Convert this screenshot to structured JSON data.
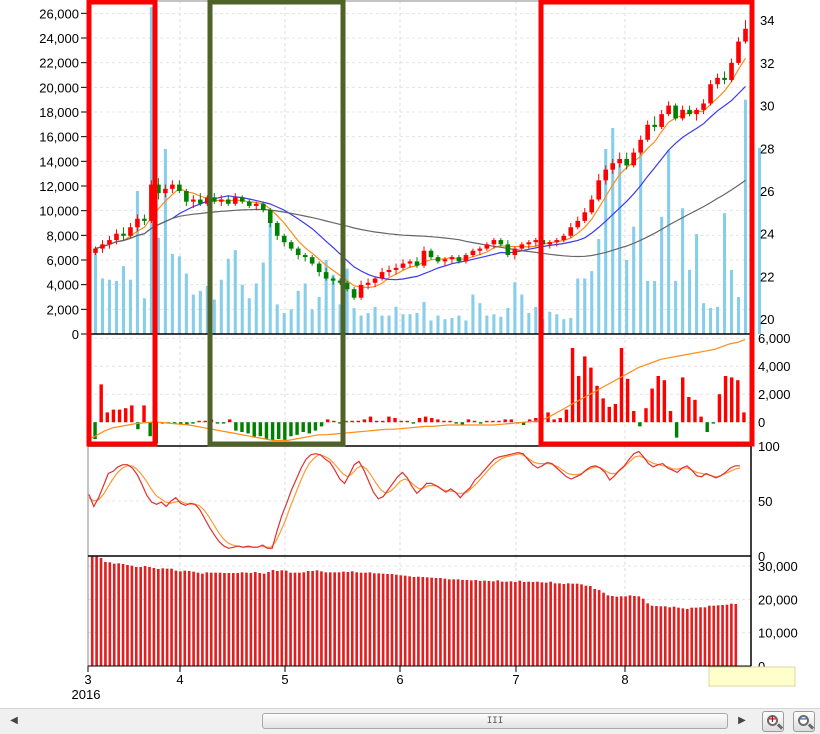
{
  "chart_data": [
    {
      "type": "candlestick",
      "panel": "price",
      "left_axis": {
        "label": "volume",
        "range": [
          0,
          27000
        ],
        "ticks": [
          "26,000",
          "24,000",
          "22,000",
          "20,000",
          "18,000",
          "16,000",
          "14,000",
          "12,000",
          "10,000",
          "8,000",
          "6,000",
          "4,000",
          "2,000",
          "0"
        ]
      },
      "right_axis": {
        "label": "price",
        "range": [
          19.3,
          34.9
        ],
        "ticks": [
          "34",
          "32",
          "30",
          "28",
          "26",
          "24",
          "22",
          "20"
        ]
      },
      "ohlc": [
        [
          23.1,
          23.4,
          23.0,
          23.3
        ],
        [
          23.3,
          23.7,
          23.1,
          23.5
        ],
        [
          23.5,
          23.9,
          23.3,
          23.7
        ],
        [
          23.7,
          24.2,
          23.5,
          24.0
        ],
        [
          24.0,
          24.3,
          23.7,
          23.9
        ],
        [
          23.9,
          24.5,
          23.8,
          24.3
        ],
        [
          24.3,
          24.9,
          24.1,
          24.7
        ],
        [
          24.7,
          24.9,
          24.4,
          24.6
        ],
        [
          24.6,
          26.5,
          24.5,
          26.3
        ],
        [
          26.3,
          26.6,
          25.6,
          25.9
        ],
        [
          25.9,
          26.3,
          25.7,
          26.1
        ],
        [
          26.1,
          26.5,
          25.9,
          26.3
        ],
        [
          26.3,
          26.5,
          25.9,
          26.0
        ],
        [
          26.0,
          26.1,
          25.3,
          25.5
        ],
        [
          25.5,
          25.8,
          25.2,
          25.6
        ],
        [
          25.6,
          25.9,
          25.3,
          25.4
        ],
        [
          25.4,
          25.8,
          25.3,
          25.7
        ],
        [
          25.7,
          25.9,
          25.4,
          25.5
        ],
        [
          25.5,
          25.8,
          25.3,
          25.6
        ],
        [
          25.6,
          25.8,
          25.3,
          25.4
        ],
        [
          25.4,
          25.9,
          25.3,
          25.7
        ],
        [
          25.7,
          25.8,
          25.4,
          25.5
        ],
        [
          25.5,
          25.6,
          25.2,
          25.3
        ],
        [
          25.3,
          25.5,
          25.1,
          25.4
        ],
        [
          25.4,
          25.5,
          25.0,
          25.1
        ],
        [
          25.1,
          25.2,
          24.3,
          24.5
        ],
        [
          24.5,
          24.6,
          23.7,
          23.9
        ],
        [
          23.9,
          24.0,
          23.4,
          23.6
        ],
        [
          23.6,
          23.7,
          23.2,
          23.3
        ],
        [
          23.3,
          23.4,
          22.8,
          23.0
        ],
        [
          23.0,
          23.1,
          22.7,
          22.9
        ],
        [
          22.9,
          23.0,
          22.5,
          22.6
        ],
        [
          22.6,
          22.7,
          22.0,
          22.2
        ],
        [
          22.2,
          22.4,
          21.8,
          21.9
        ],
        [
          21.9,
          22.0,
          21.6,
          21.8
        ],
        [
          21.8,
          21.9,
          21.6,
          21.7
        ],
        [
          21.7,
          21.8,
          21.3,
          21.4
        ],
        [
          21.4,
          21.5,
          20.9,
          21.0
        ],
        [
          21.0,
          21.8,
          20.9,
          21.6
        ],
        [
          21.6,
          21.9,
          21.4,
          21.7
        ],
        [
          21.7,
          22.0,
          21.5,
          21.9
        ],
        [
          21.9,
          22.4,
          21.8,
          22.2
        ],
        [
          22.2,
          22.5,
          22.0,
          22.3
        ],
        [
          22.3,
          22.6,
          22.1,
          22.4
        ],
        [
          22.4,
          22.8,
          22.3,
          22.6
        ],
        [
          22.6,
          22.8,
          22.4,
          22.7
        ],
        [
          22.7,
          22.9,
          22.4,
          22.5
        ],
        [
          22.5,
          23.4,
          22.4,
          23.2
        ],
        [
          23.2,
          23.3,
          22.8,
          22.9
        ],
        [
          22.9,
          23.0,
          22.6,
          22.7
        ],
        [
          22.7,
          22.9,
          22.5,
          22.8
        ],
        [
          22.8,
          23.0,
          22.6,
          22.9
        ],
        [
          22.9,
          23.0,
          22.6,
          22.7
        ],
        [
          22.7,
          23.1,
          22.6,
          23.0
        ],
        [
          23.0,
          23.3,
          22.9,
          23.2
        ],
        [
          23.2,
          23.4,
          23.0,
          23.3
        ],
        [
          23.3,
          23.6,
          23.2,
          23.5
        ],
        [
          23.5,
          23.8,
          23.3,
          23.7
        ],
        [
          23.7,
          23.8,
          23.4,
          23.5
        ],
        [
          23.5,
          23.7,
          22.9,
          23.0
        ],
        [
          23.0,
          23.4,
          22.8,
          23.3
        ],
        [
          23.3,
          23.6,
          23.2,
          23.5
        ],
        [
          23.5,
          23.7,
          23.3,
          23.6
        ],
        [
          23.6,
          23.8,
          23.4,
          23.7
        ],
        [
          23.7,
          23.8,
          23.4,
          23.5
        ],
        [
          23.5,
          23.7,
          23.3,
          23.6
        ],
        [
          23.6,
          23.8,
          23.4,
          23.7
        ],
        [
          23.7,
          24.0,
          23.6,
          23.9
        ],
        [
          23.9,
          24.5,
          23.8,
          24.3
        ],
        [
          24.3,
          24.8,
          24.2,
          24.6
        ],
        [
          24.6,
          25.2,
          24.5,
          25.0
        ],
        [
          25.0,
          25.8,
          24.9,
          25.6
        ],
        [
          25.6,
          26.8,
          25.5,
          26.5
        ],
        [
          26.5,
          27.2,
          26.3,
          27.0
        ],
        [
          27.0,
          27.5,
          26.8,
          27.3
        ],
        [
          27.3,
          27.8,
          27.1,
          27.5
        ],
        [
          27.5,
          27.8,
          27.0,
          27.2
        ],
        [
          27.2,
          28.0,
          27.1,
          27.8
        ],
        [
          27.8,
          28.6,
          27.7,
          28.4
        ],
        [
          28.4,
          29.3,
          28.3,
          29.1
        ],
        [
          29.1,
          29.5,
          28.8,
          29.0
        ],
        [
          29.0,
          29.8,
          28.9,
          29.6
        ],
        [
          29.6,
          30.2,
          29.5,
          30.0
        ],
        [
          30.0,
          30.1,
          29.3,
          29.4
        ],
        [
          29.4,
          30.0,
          29.3,
          29.8
        ],
        [
          29.8,
          30.0,
          29.5,
          29.6
        ],
        [
          29.6,
          29.9,
          29.3,
          29.8
        ],
        [
          29.8,
          30.3,
          29.6,
          30.1
        ],
        [
          30.1,
          31.2,
          30.0,
          31.0
        ],
        [
          31.0,
          31.5,
          30.8,
          31.3
        ],
        [
          31.3,
          31.6,
          31.0,
          31.2
        ],
        [
          31.2,
          32.2,
          31.1,
          32.0
        ],
        [
          32.0,
          33.2,
          31.9,
          33.0
        ],
        [
          33.0,
          34.0,
          32.9,
          33.6
        ]
      ],
      "volume": [
        7000,
        4500,
        4400,
        4300,
        5500,
        4400,
        11600,
        2900,
        26500,
        7800,
        15000,
        6500,
        6300,
        4900,
        3200,
        3500,
        3900,
        2800,
        4400,
        6100,
        6800,
        4000,
        2900,
        4100,
        5800,
        10000,
        2400,
        1700,
        2000,
        3500,
        4100,
        2000,
        3000,
        6000,
        4800,
        2400,
        5300,
        2100,
        1500,
        1700,
        2200,
        1500,
        1500,
        2200,
        1600,
        1600,
        1700,
        2600,
        1100,
        1500,
        1200,
        1300,
        1500,
        1100,
        3200,
        2500,
        1500,
        1600,
        1400,
        2100,
        4200,
        3200,
        1700,
        2200,
        1200,
        1800,
        1600,
        1200,
        1300,
        4500,
        4500,
        5100,
        7700,
        15000,
        16700,
        13900,
        6000,
        8700,
        15000,
        4300,
        4300,
        9500,
        14900,
        4300,
        10200,
        5200,
        8100,
        2500,
        2100,
        2200,
        9800,
        5200,
        3000,
        19000,
        14000,
        15100
      ]
    },
    {
      "type": "bar+line",
      "panel": "indicator-2",
      "right_axis": {
        "range": [
          -1700,
          6300
        ],
        "ticks": [
          "6,000",
          "4,000",
          "2,000",
          "0"
        ]
      },
      "bars": [
        -1200,
        2700,
        700,
        900,
        900,
        1000,
        1200,
        -500,
        1200,
        -1000,
        -1500,
        -100,
        -100,
        -100,
        -150,
        -200,
        -100,
        100,
        100,
        200,
        -100,
        -100,
        200,
        -600,
        -700,
        -800,
        -1100,
        -1000,
        -1200,
        -1300,
        -1200,
        -1300,
        -1000,
        -900,
        -700,
        -800,
        -600,
        -300,
        200,
        100,
        -100,
        100,
        100,
        100,
        200,
        400,
        100,
        100,
        400,
        300,
        100,
        100,
        -100,
        300,
        400,
        300,
        200,
        100,
        100,
        -100,
        -200,
        200,
        100,
        -100,
        100,
        100,
        100,
        200,
        200,
        -100,
        -200,
        200,
        300,
        500,
        700,
        200,
        300,
        900,
        5300,
        3300,
        4700,
        3900,
        2600,
        1700,
        1100,
        1300,
        5300,
        3100,
        800,
        -300,
        1000,
        2400,
        3300,
        3000,
        800,
        -1100,
        3200,
        1800,
        1600,
        400,
        -700,
        -100,
        2000,
        3300,
        3200,
        3000,
        700
      ],
      "line": [
        -1200,
        -900,
        -600,
        -400,
        -300,
        -200,
        -100,
        -50,
        0,
        0,
        -50,
        -100,
        -150,
        -200,
        -300,
        -400,
        -500,
        -600,
        -700,
        -800,
        -900,
        -1000,
        -1100,
        -1200,
        -1300,
        -1300,
        -1300,
        -1200,
        -1100,
        -1000,
        -900,
        -900,
        -850,
        -800,
        -750,
        -700,
        -650,
        -600,
        -550,
        -500,
        -500,
        -450,
        -400,
        -350,
        -300,
        -300,
        -250,
        -200,
        -200,
        -200,
        -200,
        -200,
        -200,
        -200,
        -150,
        -100,
        -50,
        0,
        50,
        100,
        300,
        600,
        900,
        1200,
        1500,
        1800,
        2100,
        2400,
        2700,
        3000,
        3300,
        3600,
        3900,
        4100,
        4300,
        4500,
        4600,
        4700,
        4800,
        4900,
        5000,
        5100,
        5200,
        5400,
        5600,
        5700,
        5900
      ]
    },
    {
      "type": "line",
      "panel": "oscillator",
      "right_axis": {
        "range": [
          0,
          100
        ],
        "ticks": [
          "100",
          "50",
          "0"
        ]
      },
      "fast": [
        56,
        45,
        53,
        64,
        75,
        77,
        81,
        83,
        83,
        80,
        74,
        65,
        55,
        49,
        47,
        49,
        45,
        50,
        53,
        48,
        46,
        48,
        47,
        42,
        34,
        26,
        19,
        13,
        9,
        7,
        8,
        9,
        8,
        9,
        8,
        8,
        10,
        7,
        7,
        23,
        37,
        48,
        60,
        70,
        80,
        88,
        92,
        93,
        92,
        88,
        85,
        78,
        70,
        66,
        74,
        83,
        86,
        78,
        68,
        58,
        52,
        54,
        60,
        66,
        72,
        76,
        71,
        63,
        57,
        61,
        66,
        66,
        64,
        61,
        58,
        61,
        58,
        53,
        58,
        62,
        69,
        73,
        78,
        83,
        88,
        90,
        91,
        92,
        93,
        94,
        93,
        88,
        83,
        80,
        82,
        85,
        84,
        80,
        76,
        72,
        70,
        72,
        74,
        78,
        81,
        82,
        80,
        76,
        69,
        73,
        78,
        82,
        88,
        93,
        95,
        90,
        84,
        81,
        83,
        84,
        80,
        78,
        76,
        80,
        82,
        78,
        73,
        72,
        75,
        73,
        71,
        73,
        76,
        80,
        82,
        82
      ],
      "slow": [
        53,
        50,
        51,
        56,
        63,
        70,
        76,
        80,
        82,
        82,
        79,
        74,
        68,
        61,
        55,
        52,
        49,
        48,
        49,
        50,
        48,
        47,
        47,
        46,
        42,
        36,
        29,
        22,
        16,
        12,
        10,
        9,
        8,
        8,
        8,
        8,
        9,
        8,
        8,
        13,
        22,
        32,
        44,
        55,
        66,
        76,
        84,
        89,
        92,
        91,
        89,
        85,
        80,
        75,
        72,
        75,
        80,
        82,
        79,
        73,
        66,
        60,
        57,
        59,
        63,
        68,
        70,
        68,
        64,
        61,
        62,
        64,
        64,
        63,
        60,
        59,
        59,
        57,
        57,
        58,
        62,
        66,
        71,
        76,
        81,
        85,
        88,
        90,
        91,
        92,
        93,
        91,
        88,
        85,
        84,
        84,
        84,
        83,
        81,
        78,
        75,
        74,
        74,
        75,
        78,
        80,
        81,
        80,
        77,
        75,
        75,
        78,
        82,
        86,
        90,
        91,
        89,
        86,
        84,
        83,
        82,
        81,
        79,
        79,
        80,
        80,
        78,
        76,
        75,
        74,
        73,
        72,
        73,
        75,
        77,
        79,
        80
      ]
    },
    {
      "type": "bar",
      "panel": "bottom",
      "right_axis": {
        "range": [
          0,
          33000
        ],
        "ticks": [
          "30,000",
          "20,000",
          "10,000",
          "0"
        ]
      },
      "values": [
        32800,
        32800,
        32400,
        31200,
        31100,
        30700,
        30800,
        30600,
        30300,
        30100,
        29700,
        29700,
        30000,
        29700,
        29400,
        29100,
        29300,
        29200,
        29200,
        28600,
        28400,
        28600,
        28500,
        28300,
        28000,
        27700,
        28100,
        28000,
        28000,
        28000,
        27900,
        27900,
        27900,
        27900,
        28100,
        28000,
        27900,
        28200,
        27900,
        27700,
        28200,
        28800,
        28500,
        28700,
        28600,
        28000,
        28000,
        28000,
        28100,
        28500,
        28500,
        28700,
        28400,
        28100,
        28100,
        28100,
        28100,
        28300,
        28200,
        28400,
        28100,
        28000,
        28000,
        28100,
        27800,
        27800,
        27700,
        27600,
        27600,
        27400,
        27200,
        27100,
        26900,
        26700,
        26800,
        26700,
        26600,
        26500,
        26400,
        26400,
        26200,
        26000,
        26000,
        26000,
        25800,
        25800,
        25700,
        25800,
        25500,
        25600,
        25500,
        25400,
        25700,
        25300,
        25300,
        25400,
        25200,
        25600,
        25200,
        25300,
        25200,
        25300,
        25100,
        25000,
        25300,
        24800,
        24800,
        24600,
        24800,
        24700,
        24700,
        24500,
        24100,
        24000,
        23100,
        22800,
        22000,
        21200,
        21000,
        20800,
        20900,
        20900,
        21200,
        21000,
        20900,
        20200,
        18800,
        18100,
        18000,
        17900,
        17900,
        17600,
        17800,
        17500,
        17300,
        17100,
        17500,
        17500,
        17600,
        17600,
        18100,
        18100,
        18200,
        18300,
        18400,
        18700,
        18600
      ],
      "x_ticks": [
        "3",
        "4",
        "5",
        "6",
        "7",
        "8"
      ],
      "x_sub_label": "2016"
    }
  ],
  "highlight_boxes": [
    {
      "name": "red-highlight-left",
      "color": "#ff0000"
    },
    {
      "name": "green-highlight",
      "color": "#4f6228"
    },
    {
      "name": "red-highlight-right",
      "color": "#ff0000"
    }
  ],
  "colors": {
    "up": "#ff0000",
    "down": "#008000",
    "volume": "#87ceeb",
    "ma_short": "#ff8c1a",
    "ma_mid": "#3a3af0",
    "ma_long": "#666666",
    "fast_line": "#e03030",
    "slow_line": "#ff9933",
    "bottom_bars": "#e02020"
  },
  "scrollbar": {
    "grip": "III"
  }
}
